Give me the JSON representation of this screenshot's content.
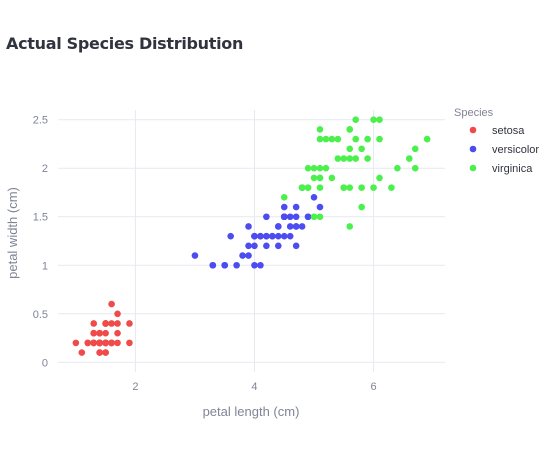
{
  "chart_data": {
    "type": "scatter",
    "title": "Actual Species Distribution",
    "xlabel": "petal length (cm)",
    "ylabel": "petal width (cm)",
    "xlim": [
      0.7,
      7.2
    ],
    "ylim": [
      -0.1,
      2.6
    ],
    "xticks": [
      2,
      4,
      6
    ],
    "yticks": [
      0,
      0.5,
      1,
      1.5,
      2,
      2.5
    ],
    "ytick_labels": [
      "0",
      "0.5",
      "1",
      "1.5",
      "2",
      "2.5"
    ],
    "grid": true,
    "legend": {
      "title": "Species",
      "placement": "right"
    },
    "series": [
      {
        "name": "setosa",
        "color": "#ef4b4b",
        "points": [
          [
            1.4,
            0.2
          ],
          [
            1.4,
            0.2
          ],
          [
            1.3,
            0.2
          ],
          [
            1.5,
            0.2
          ],
          [
            1.4,
            0.2
          ],
          [
            1.7,
            0.4
          ],
          [
            1.4,
            0.3
          ],
          [
            1.5,
            0.2
          ],
          [
            1.4,
            0.2
          ],
          [
            1.5,
            0.1
          ],
          [
            1.5,
            0.2
          ],
          [
            1.6,
            0.2
          ],
          [
            1.4,
            0.1
          ],
          [
            1.1,
            0.1
          ],
          [
            1.2,
            0.2
          ],
          [
            1.5,
            0.4
          ],
          [
            1.3,
            0.4
          ],
          [
            1.4,
            0.3
          ],
          [
            1.7,
            0.3
          ],
          [
            1.5,
            0.3
          ],
          [
            1.7,
            0.2
          ],
          [
            1.5,
            0.4
          ],
          [
            1.0,
            0.2
          ],
          [
            1.7,
            0.5
          ],
          [
            1.9,
            0.2
          ],
          [
            1.6,
            0.2
          ],
          [
            1.6,
            0.4
          ],
          [
            1.5,
            0.2
          ],
          [
            1.4,
            0.2
          ],
          [
            1.6,
            0.2
          ],
          [
            1.6,
            0.2
          ],
          [
            1.5,
            0.4
          ],
          [
            1.5,
            0.1
          ],
          [
            1.4,
            0.2
          ],
          [
            1.5,
            0.2
          ],
          [
            1.2,
            0.2
          ],
          [
            1.3,
            0.2
          ],
          [
            1.4,
            0.1
          ],
          [
            1.3,
            0.2
          ],
          [
            1.5,
            0.2
          ],
          [
            1.3,
            0.3
          ],
          [
            1.3,
            0.3
          ],
          [
            1.3,
            0.2
          ],
          [
            1.6,
            0.6
          ],
          [
            1.9,
            0.4
          ],
          [
            1.4,
            0.3
          ],
          [
            1.6,
            0.2
          ],
          [
            1.4,
            0.2
          ],
          [
            1.5,
            0.2
          ],
          [
            1.4,
            0.2
          ]
        ]
      },
      {
        "name": "versicolor",
        "color": "#4c4cf0",
        "points": [
          [
            4.7,
            1.4
          ],
          [
            4.5,
            1.5
          ],
          [
            4.9,
            1.5
          ],
          [
            4.0,
            1.3
          ],
          [
            4.6,
            1.5
          ],
          [
            4.5,
            1.3
          ],
          [
            4.7,
            1.6
          ],
          [
            3.3,
            1.0
          ],
          [
            4.6,
            1.3
          ],
          [
            3.9,
            1.4
          ],
          [
            3.5,
            1.0
          ],
          [
            4.2,
            1.5
          ],
          [
            4.0,
            1.0
          ],
          [
            4.7,
            1.4
          ],
          [
            3.6,
            1.3
          ],
          [
            4.4,
            1.4
          ],
          [
            4.5,
            1.5
          ],
          [
            4.1,
            1.0
          ],
          [
            4.5,
            1.5
          ],
          [
            3.9,
            1.1
          ],
          [
            4.8,
            1.8
          ],
          [
            4.0,
            1.3
          ],
          [
            4.9,
            1.5
          ],
          [
            4.7,
            1.2
          ],
          [
            4.3,
            1.3
          ],
          [
            4.4,
            1.4
          ],
          [
            4.8,
            1.4
          ],
          [
            5.0,
            1.7
          ],
          [
            4.5,
            1.5
          ],
          [
            3.5,
            1.0
          ],
          [
            3.8,
            1.1
          ],
          [
            3.7,
            1.0
          ],
          [
            3.9,
            1.2
          ],
          [
            5.1,
            1.6
          ],
          [
            4.5,
            1.5
          ],
          [
            4.5,
            1.6
          ],
          [
            4.7,
            1.5
          ],
          [
            4.4,
            1.3
          ],
          [
            4.1,
            1.3
          ],
          [
            4.0,
            1.3
          ],
          [
            4.4,
            1.2
          ],
          [
            4.6,
            1.4
          ],
          [
            4.0,
            1.2
          ],
          [
            3.3,
            1.0
          ],
          [
            4.2,
            1.3
          ],
          [
            4.2,
            1.2
          ],
          [
            4.2,
            1.3
          ],
          [
            4.3,
            1.3
          ],
          [
            3.0,
            1.1
          ],
          [
            4.1,
            1.3
          ]
        ]
      },
      {
        "name": "virginica",
        "color": "#4cf04c",
        "points": [
          [
            6.0,
            2.5
          ],
          [
            5.1,
            1.9
          ],
          [
            5.9,
            2.1
          ],
          [
            5.6,
            1.8
          ],
          [
            5.8,
            2.2
          ],
          [
            6.6,
            2.1
          ],
          [
            4.5,
            1.7
          ],
          [
            6.3,
            1.8
          ],
          [
            5.8,
            1.8
          ],
          [
            6.1,
            2.5
          ],
          [
            5.1,
            2.0
          ],
          [
            5.3,
            1.9
          ],
          [
            5.5,
            2.1
          ],
          [
            5.0,
            2.0
          ],
          [
            5.1,
            2.4
          ],
          [
            5.3,
            2.3
          ],
          [
            5.5,
            1.8
          ],
          [
            6.7,
            2.2
          ],
          [
            6.9,
            2.3
          ],
          [
            5.0,
            1.5
          ],
          [
            5.7,
            2.3
          ],
          [
            4.9,
            2.0
          ],
          [
            6.7,
            2.0
          ],
          [
            4.9,
            1.8
          ],
          [
            5.7,
            2.1
          ],
          [
            6.0,
            1.8
          ],
          [
            4.8,
            1.8
          ],
          [
            4.9,
            1.8
          ],
          [
            5.6,
            2.1
          ],
          [
            5.8,
            1.6
          ],
          [
            6.1,
            1.9
          ],
          [
            6.4,
            2.0
          ],
          [
            5.6,
            2.2
          ],
          [
            5.1,
            1.5
          ],
          [
            5.6,
            1.4
          ],
          [
            6.1,
            2.3
          ],
          [
            5.6,
            2.4
          ],
          [
            5.5,
            1.8
          ],
          [
            4.8,
            1.8
          ],
          [
            5.4,
            2.1
          ],
          [
            5.6,
            2.4
          ],
          [
            5.1,
            2.3
          ],
          [
            5.1,
            1.9
          ],
          [
            5.9,
            2.3
          ],
          [
            5.7,
            2.5
          ],
          [
            5.2,
            2.3
          ],
          [
            5.0,
            1.9
          ],
          [
            5.2,
            2.0
          ],
          [
            5.4,
            2.3
          ],
          [
            5.1,
            1.8
          ]
        ]
      }
    ]
  }
}
